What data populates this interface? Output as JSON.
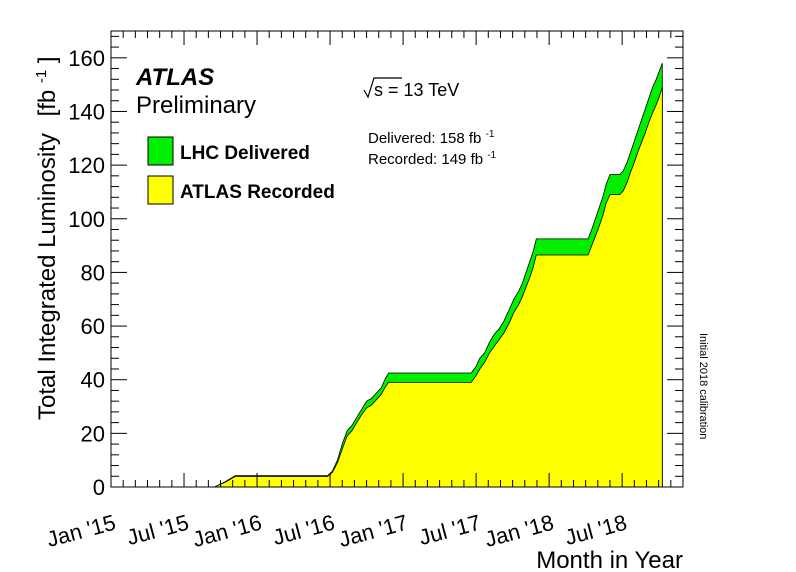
{
  "chart_data": {
    "type": "area",
    "ylabel": "Total Integrated Luminosity",
    "ylabel_unit": "[fb",
    "ylabel_unit_sup": "-1",
    "ylabel_unit_close": "]",
    "xlabel": "Month in Year",
    "experiment": "ATLAS",
    "status": "Preliminary",
    "energy_label": "s = 13 TeV",
    "delivered_label": "Delivered: 158 fb",
    "recorded_label": "Recorded: 149 fb",
    "unit_sup": "-1",
    "side_note": "Initial 2018 calibration",
    "ylim": [
      0,
      170
    ],
    "y_ticks": [
      0,
      20,
      40,
      60,
      80,
      100,
      120,
      140,
      160
    ],
    "x_range_months": [
      0,
      47
    ],
    "x_ticks": [
      {
        "label": "Jan '15",
        "month": 0
      },
      {
        "label": "Jul '15",
        "month": 6
      },
      {
        "label": "Jan '16",
        "month": 12
      },
      {
        "label": "Jul '16",
        "month": 18
      },
      {
        "label": "Jan '17",
        "month": 24
      },
      {
        "label": "Jul '17",
        "month": 30
      },
      {
        "label": "Jan '18",
        "month": 36
      },
      {
        "label": "Jul '18",
        "month": 42
      }
    ],
    "series": [
      {
        "name": "LHC Delivered",
        "color": "#00ee00",
        "points": [
          [
            0,
            0
          ],
          [
            8.5,
            0
          ],
          [
            9.4,
            2
          ],
          [
            10.2,
            4.2
          ],
          [
            11.5,
            4.2
          ],
          [
            15,
            4.2
          ],
          [
            17.8,
            4.2
          ],
          [
            18.2,
            6
          ],
          [
            18.6,
            10
          ],
          [
            19,
            16
          ],
          [
            19.4,
            21
          ],
          [
            19.8,
            23
          ],
          [
            20.2,
            26
          ],
          [
            20.6,
            29
          ],
          [
            21,
            32
          ],
          [
            21.4,
            33
          ],
          [
            21.8,
            35
          ],
          [
            22.2,
            37
          ],
          [
            22.5,
            40
          ],
          [
            22.8,
            42.5
          ],
          [
            25,
            42.5
          ],
          [
            28,
            42.5
          ],
          [
            29.6,
            42.5
          ],
          [
            30.0,
            45
          ],
          [
            30.3,
            48
          ],
          [
            30.7,
            50
          ],
          [
            31.1,
            54
          ],
          [
            31.5,
            57
          ],
          [
            31.9,
            59
          ],
          [
            32.3,
            62
          ],
          [
            32.7,
            66
          ],
          [
            33.1,
            70
          ],
          [
            33.5,
            73
          ],
          [
            33.8,
            76
          ],
          [
            34.1,
            80
          ],
          [
            34.4,
            84
          ],
          [
            34.7,
            88
          ],
          [
            34.95,
            92.5
          ],
          [
            36,
            92.5
          ],
          [
            38,
            92.5
          ],
          [
            39.2,
            92.5
          ],
          [
            39.5,
            96
          ],
          [
            39.8,
            100
          ],
          [
            40.1,
            104
          ],
          [
            40.4,
            108
          ],
          [
            40.7,
            113
          ],
          [
            41.0,
            116.5
          ],
          [
            41.8,
            116.5
          ],
          [
            42.1,
            118
          ],
          [
            42.4,
            121
          ],
          [
            42.7,
            125
          ],
          [
            43.0,
            129
          ],
          [
            43.3,
            133
          ],
          [
            43.6,
            137
          ],
          [
            43.9,
            141
          ],
          [
            44.2,
            145
          ],
          [
            44.5,
            149
          ],
          [
            44.8,
            152
          ],
          [
            45.05,
            155
          ],
          [
            45.3,
            158
          ]
        ]
      },
      {
        "name": "ATLAS Recorded",
        "color": "#ffff00",
        "points": [
          [
            0,
            0
          ],
          [
            8.5,
            0
          ],
          [
            9.4,
            1.8
          ],
          [
            10.2,
            3.9
          ],
          [
            11.5,
            3.9
          ],
          [
            15,
            3.9
          ],
          [
            17.8,
            3.9
          ],
          [
            18.2,
            5.5
          ],
          [
            18.6,
            9
          ],
          [
            19,
            14
          ],
          [
            19.4,
            19
          ],
          [
            19.8,
            21
          ],
          [
            20.2,
            24
          ],
          [
            20.6,
            27
          ],
          [
            21,
            29.5
          ],
          [
            21.4,
            30.5
          ],
          [
            21.8,
            32.5
          ],
          [
            22.2,
            34.5
          ],
          [
            22.5,
            37
          ],
          [
            22.8,
            39
          ],
          [
            25,
            39
          ],
          [
            28,
            39
          ],
          [
            29.6,
            39
          ],
          [
            30.0,
            41.5
          ],
          [
            30.3,
            44
          ],
          [
            30.7,
            46.5
          ],
          [
            31.1,
            50
          ],
          [
            31.5,
            52.5
          ],
          [
            31.9,
            55
          ],
          [
            32.3,
            57.5
          ],
          [
            32.7,
            61
          ],
          [
            33.1,
            65
          ],
          [
            33.5,
            68
          ],
          [
            33.8,
            71
          ],
          [
            34.1,
            74.5
          ],
          [
            34.4,
            78
          ],
          [
            34.7,
            82
          ],
          [
            34.95,
            86.5
          ],
          [
            36,
            86.5
          ],
          [
            38,
            86.5
          ],
          [
            39.2,
            86.5
          ],
          [
            39.5,
            90
          ],
          [
            39.8,
            93.5
          ],
          [
            40.1,
            97
          ],
          [
            40.4,
            101
          ],
          [
            40.7,
            106
          ],
          [
            41.0,
            109
          ],
          [
            41.8,
            109
          ],
          [
            42.1,
            110.5
          ],
          [
            42.4,
            113.5
          ],
          [
            42.7,
            117.5
          ],
          [
            43.0,
            121
          ],
          [
            43.3,
            125
          ],
          [
            43.6,
            128.5
          ],
          [
            43.9,
            132
          ],
          [
            44.2,
            136
          ],
          [
            44.5,
            139.5
          ],
          [
            44.8,
            142.5
          ],
          [
            45.05,
            145.5
          ],
          [
            45.3,
            149
          ]
        ]
      }
    ],
    "legend": [
      {
        "label": "LHC Delivered",
        "color": "#00ee00"
      },
      {
        "label": "ATLAS Recorded",
        "color": "#ffff00"
      }
    ],
    "legend_position": "top-left",
    "grid": false
  }
}
